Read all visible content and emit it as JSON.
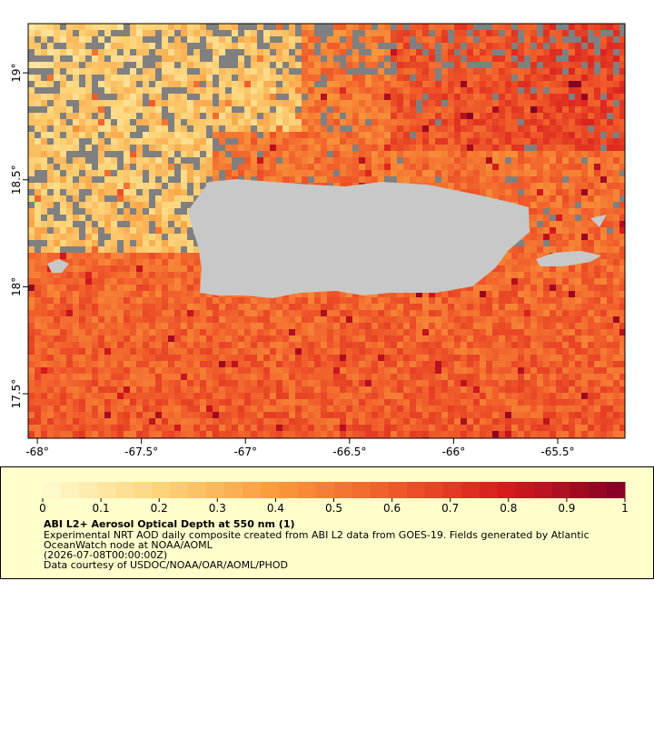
{
  "map": {
    "xlim": [
      -68.044,
      -65.177
    ],
    "ylim": [
      17.292,
      19.23
    ],
    "xticks": [
      {
        "value": -68,
        "label": "-68°"
      },
      {
        "value": -67.5,
        "label": "-67.5°"
      },
      {
        "value": -67,
        "label": "-67°"
      },
      {
        "value": -66.5,
        "label": "-66.5°"
      },
      {
        "value": -66,
        "label": "-66°"
      },
      {
        "value": -65.5,
        "label": "-65.5°"
      }
    ],
    "yticks": [
      {
        "value": 17.5,
        "label": "17.5°"
      },
      {
        "value": 18,
        "label": "18°"
      },
      {
        "value": 18.5,
        "label": "18.5°"
      },
      {
        "value": 19,
        "label": "19°"
      }
    ]
  },
  "colorbar": {
    "lim": [
      0,
      1
    ],
    "ticks": [
      0,
      0.1,
      0.2,
      0.3,
      0.4,
      0.5,
      0.6,
      0.7,
      0.8,
      0.9,
      1
    ]
  },
  "legend": {
    "title": "ABI L2+ Aerosol Optical Depth at 550 nm (1)",
    "lines": [
      "Experimental NRT AOD daily composite created from ABI L2 data from GOES-19. Fields generated by Atlantic",
      "OceanWatch node at NOAA/AOML",
      "(2026-07-08T00:00:00Z)",
      "Data courtesy of USDOC/NOAA/OAR/AOML/PHOD"
    ]
  }
}
